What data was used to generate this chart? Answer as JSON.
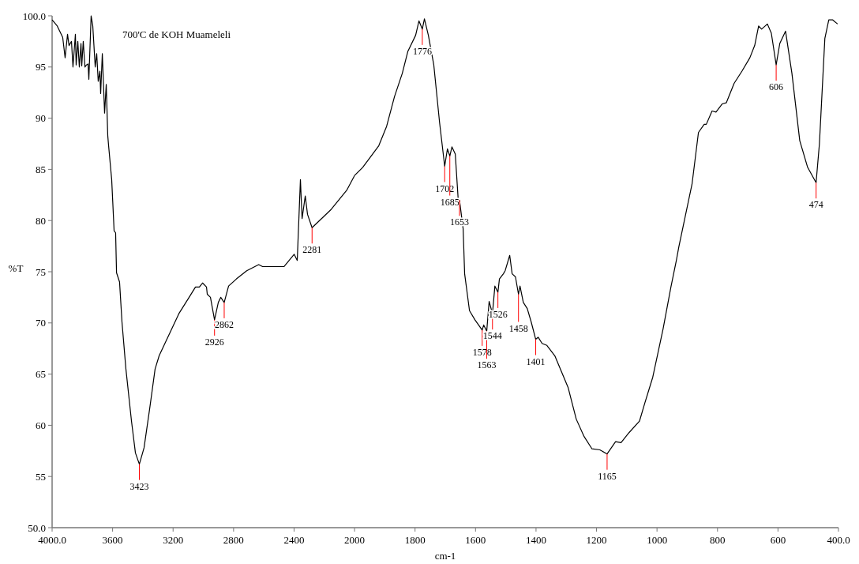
{
  "chart_data": [
    {
      "type": "line",
      "title": "700'C de KOH Muameleli",
      "ylabel": "%T",
      "xlim": [
        4000,
        2000
      ],
      "xticks": [
        {
          "value": 4000,
          "label": "4000.0"
        },
        3600,
        3200,
        2800,
        2400,
        2000
      ],
      "ylim": [
        50,
        100
      ],
      "yticks": [
        {
          "value": 50,
          "label": "50.0"
        },
        55,
        60,
        65,
        70,
        75,
        80,
        85,
        90,
        95,
        {
          "value": 100,
          "label": "100.0"
        }
      ],
      "grid": false,
      "marker": "none",
      "line_style": "solid",
      "series": [
        {
          "color": "#000000",
          "x": [
            4000,
            3966,
            3930,
            3914,
            3898,
            3888,
            3872,
            3862,
            3846,
            3841,
            3830,
            3820,
            3809,
            3804,
            3794,
            3783,
            3773,
            3762,
            3757,
            3742,
            3731,
            3715,
            3705,
            3695,
            3684,
            3679,
            3668,
            3653,
            3642,
            3632,
            3627,
            3606,
            3590,
            3580,
            3574,
            3554,
            3538,
            3512,
            3475,
            3449,
            3423,
            3392,
            3355,
            3319,
            3292,
            3251,
            3162,
            3094,
            3052,
            3026,
            3005,
            2979,
            2974,
            2953,
            2926,
            2901,
            2885,
            2862,
            2833,
            2781,
            2713,
            2634,
            2608,
            2520,
            2467,
            2399,
            2379,
            2358,
            2347,
            2326,
            2311,
            2281,
            2154,
            2050,
            2000
          ],
          "values": [
            99.6,
            99.0,
            97.9,
            95.9,
            98.2,
            97.1,
            97.5,
            95.0,
            98.2,
            95.2,
            97.5,
            95.0,
            97.3,
            95.1,
            97.5,
            95.0,
            95.2,
            95.3,
            93.8,
            100.0,
            99.0,
            95.0,
            96.3,
            93.6,
            94.6,
            92.4,
            96.3,
            90.5,
            93.3,
            88.3,
            87.4,
            84.0,
            79.0,
            78.8,
            74.9,
            74.0,
            70.1,
            65.5,
            60.4,
            57.3,
            56.2,
            57.8,
            61.6,
            65.5,
            66.8,
            68.1,
            70.9,
            72.5,
            73.5,
            73.5,
            73.9,
            73.5,
            72.8,
            72.5,
            70.3,
            72.0,
            72.5,
            72.0,
            73.6,
            74.3,
            75.1,
            75.7,
            75.5,
            75.5,
            75.5,
            76.7,
            76.1,
            84.0,
            80.2,
            82.4,
            80.6,
            79.3,
            81.1,
            83.0,
            84.4
          ]
        }
      ],
      "annotations": [
        {
          "text": "3423",
          "x": 3423,
          "y": 56.2
        },
        {
          "text": "2926",
          "x": 2926,
          "y": 70.3
        },
        {
          "text": "2862",
          "x": 2862,
          "y": 72.0
        },
        {
          "text": "2281",
          "x": 2281,
          "y": 79.3
        }
      ]
    },
    {
      "type": "line",
      "xlabel": "cm-1",
      "tick_labels": "x",
      "xlim": [
        2000,
        400
      ],
      "xticks": [
        1800,
        1600,
        1400,
        1200,
        1000,
        800,
        600,
        {
          "value": 400,
          "label": "400.0"
        }
      ],
      "ylim": [
        50,
        100
      ],
      "grid": false,
      "marker": "none",
      "line_style": "solid",
      "series": [
        {
          "color": "#000000",
          "x": [
            2000,
            1973,
            1920,
            1894,
            1868,
            1842,
            1824,
            1798,
            1787,
            1776,
            1769,
            1756,
            1738,
            1719,
            1702,
            1693,
            1685,
            1678,
            1667,
            1657,
            1653,
            1641,
            1636,
            1620,
            1602,
            1578,
            1573,
            1563,
            1555,
            1544,
            1536,
            1526,
            1521,
            1508,
            1502,
            1487,
            1479,
            1468,
            1458,
            1453,
            1442,
            1429,
            1416,
            1401,
            1393,
            1380,
            1364,
            1338,
            1294,
            1267,
            1241,
            1215,
            1189,
            1165,
            1137,
            1119,
            1092,
            1058,
            1040,
            1014,
            980,
            954,
            936,
            928,
            884,
            863,
            844,
            837,
            818,
            805,
            784,
            771,
            745,
            719,
            693,
            677,
            664,
            654,
            635,
            622,
            606,
            594,
            575,
            554,
            528,
            502,
            474,
            463,
            445,
            432,
            419,
            403
          ],
          "values": [
            84.4,
            85.2,
            87.3,
            89.2,
            92.1,
            94.4,
            96.5,
            98.1,
            99.5,
            98.7,
            99.7,
            98.1,
            95.2,
            89.6,
            85.3,
            87.0,
            86.3,
            87.2,
            86.5,
            81.9,
            82.0,
            79.2,
            74.8,
            71.2,
            70.3,
            69.3,
            69.8,
            69.2,
            72.1,
            70.9,
            73.6,
            73.0,
            74.3,
            74.8,
            75.1,
            76.6,
            74.8,
            74.5,
            72.8,
            73.6,
            72.0,
            71.4,
            70.1,
            68.4,
            68.6,
            68.0,
            67.8,
            66.8,
            63.7,
            60.6,
            58.9,
            57.7,
            57.6,
            57.2,
            58.4,
            58.3,
            59.3,
            60.4,
            62.2,
            64.7,
            69.4,
            73.5,
            76.1,
            77.4,
            83.6,
            88.6,
            89.4,
            89.4,
            90.7,
            90.6,
            91.4,
            91.5,
            93.4,
            94.6,
            95.9,
            97.1,
            99.0,
            98.7,
            99.2,
            98.3,
            95.2,
            97.3,
            98.5,
            94.4,
            87.8,
            85.2,
            83.7,
            87.5,
            97.8,
            99.6,
            99.6,
            99.2
          ]
        }
      ],
      "annotations": [
        {
          "text": "1776",
          "x": 1776,
          "y": 98.7
        },
        {
          "text": "1702",
          "x": 1702,
          "y": 85.3
        },
        {
          "text": "1685",
          "x": 1685,
          "y": 86.3
        },
        {
          "text": "1653",
          "x": 1653,
          "y": 82.0
        },
        {
          "text": "1578",
          "x": 1578,
          "y": 69.3
        },
        {
          "text": "1563",
          "x": 1563,
          "y": 69.2
        },
        {
          "text": "1544",
          "x": 1544,
          "y": 70.9
        },
        {
          "text": "1526",
          "x": 1526,
          "y": 73.0
        },
        {
          "text": "1458",
          "x": 1458,
          "y": 72.8
        },
        {
          "text": "1401",
          "x": 1401,
          "y": 68.4
        },
        {
          "text": "1165",
          "x": 1165,
          "y": 57.2
        },
        {
          "text": "606",
          "x": 606,
          "y": 95.2
        },
        {
          "text": "474",
          "x": 474,
          "y": 83.7
        }
      ]
    }
  ]
}
